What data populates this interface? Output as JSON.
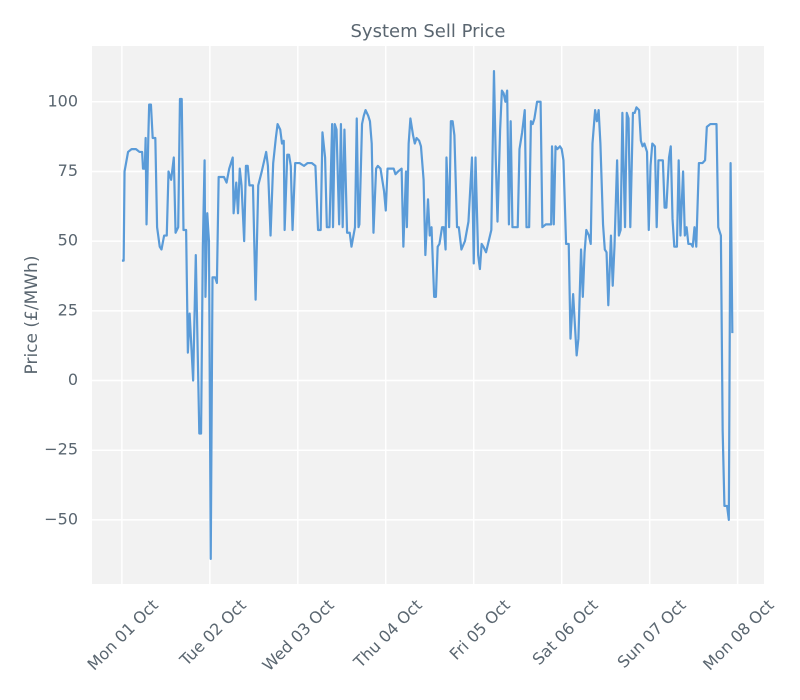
{
  "chart_data": {
    "type": "line",
    "title": "System Sell Price",
    "y_label": "Price (£/MWh)",
    "x": [
      0,
      0.02,
      0.03,
      0.07,
      0.11,
      0.16,
      0.2,
      0.23,
      0.24,
      0.26,
      0.27,
      0.28,
      0.3,
      0.31,
      0.33,
      0.35,
      0.38,
      0.4,
      0.43,
      0.45,
      0.48,
      0.51,
      0.53,
      0.56,
      0.59,
      0.61,
      0.64,
      0.66,
      0.68,
      0.7,
      0.73,
      0.75,
      0.77,
      0.81,
      0.84,
      0.88,
      0.9,
      0.92,
      0.94,
      0.95,
      0.97,
      0.99,
      1.01,
      1.03,
      1.06,
      1.08,
      1.1,
      1.16,
      1.19,
      1.22,
      1.24,
      1.26,
      1.27,
      1.3,
      1.32,
      1.34,
      1.36,
      1.39,
      1.41,
      1.43,
      1.45,
      1.49,
      1.52,
      1.55,
      1.59,
      1.64,
      1.66,
      1.69,
      1.72,
      1.75,
      1.77,
      1.8,
      1.82,
      1.84,
      1.85,
      1.88,
      1.9,
      1.92,
      1.94,
      1.97,
      2.02,
      2.07,
      2.11,
      2.16,
      2.2,
      2.23,
      2.26,
      2.28,
      2.31,
      2.33,
      2.36,
      2.39,
      2.4,
      2.42,
      2.44,
      2.47,
      2.49,
      2.51,
      2.53,
      2.56,
      2.59,
      2.61,
      2.65,
      2.67,
      2.69,
      2.7,
      2.73,
      2.75,
      2.77,
      2.8,
      2.82,
      2.84,
      2.86,
      2.89,
      2.91,
      2.94,
      2.98,
      3.0,
      3.02,
      3.06,
      3.09,
      3.11,
      3.14,
      3.18,
      3.2,
      3.23,
      3.24,
      3.26,
      3.28,
      3.31,
      3.33,
      3.35,
      3.38,
      3.4,
      3.43,
      3.45,
      3.48,
      3.5,
      3.52,
      3.55,
      3.57,
      3.59,
      3.61,
      3.64,
      3.66,
      3.68,
      3.69,
      3.72,
      3.74,
      3.76,
      3.78,
      3.81,
      3.83,
      3.86,
      3.9,
      3.94,
      3.98,
      4.0,
      4.02,
      4.05,
      4.07,
      4.09,
      4.11,
      4.14,
      4.17,
      4.2,
      4.23,
      4.25,
      4.27,
      4.3,
      4.32,
      4.34,
      4.36,
      4.38,
      4.4,
      4.42,
      4.44,
      4.48,
      4.5,
      4.52,
      4.55,
      4.58,
      4.6,
      4.63,
      4.65,
      4.67,
      4.69,
      4.72,
      4.76,
      4.78,
      4.82,
      4.85,
      4.88,
      4.89,
      4.91,
      4.93,
      4.95,
      4.98,
      5.0,
      5.02,
      5.05,
      5.08,
      5.1,
      5.13,
      5.15,
      5.17,
      5.19,
      5.22,
      5.24,
      5.26,
      5.28,
      5.31,
      5.33,
      5.35,
      5.38,
      5.4,
      5.42,
      5.44,
      5.47,
      5.49,
      5.51,
      5.53,
      5.56,
      5.58,
      5.6,
      5.63,
      5.65,
      5.67,
      5.69,
      5.72,
      5.74,
      5.76,
      5.78,
      5.81,
      5.83,
      5.85,
      5.88,
      5.9,
      5.92,
      5.94,
      5.97,
      5.99,
      6.01,
      6.03,
      6.06,
      6.08,
      6.1,
      6.13,
      6.15,
      6.17,
      6.19,
      6.22,
      6.24,
      6.26,
      6.28,
      6.31,
      6.33,
      6.35,
      6.38,
      6.4,
      6.42,
      6.44,
      6.47,
      6.49,
      6.51,
      6.53,
      6.56,
      6.6,
      6.63,
      6.65,
      6.69,
      6.74,
      6.76,
      6.78,
      6.81,
      6.83,
      6.85,
      6.88,
      6.9,
      6.92,
      6.94
    ],
    "series": [
      {
        "name": "System Sell Price",
        "color": "#5a9bd8",
        "values": [
          43,
          43,
          75,
          82,
          83,
          83,
          82,
          82,
          76,
          76,
          87,
          56,
          87,
          99,
          99,
          87,
          87,
          55,
          48,
          47,
          52,
          52,
          75,
          72,
          80,
          53,
          55,
          101,
          101,
          54,
          54,
          10,
          24,
          0,
          45,
          -19,
          -19,
          48,
          79,
          30,
          60,
          50,
          -64,
          37,
          37,
          35,
          73,
          73,
          71,
          76,
          78,
          80,
          60,
          71,
          60,
          76,
          70,
          50,
          77,
          77,
          70,
          70,
          29,
          70,
          75,
          82,
          77,
          52,
          78,
          87,
          92,
          90,
          85,
          86,
          54,
          81,
          81,
          77,
          54,
          78,
          78,
          77,
          78,
          78,
          77,
          54,
          54,
          89,
          80,
          55,
          55,
          92,
          55,
          92,
          90,
          56,
          92,
          55,
          90,
          53,
          53,
          48,
          55,
          94,
          55,
          56,
          92,
          95,
          97,
          95,
          93,
          85,
          53,
          76,
          77,
          76,
          68,
          61,
          76,
          76,
          76,
          74,
          75,
          76,
          48,
          75,
          55,
          85,
          94,
          88,
          85,
          87,
          86,
          84,
          72,
          45,
          65,
          52,
          55,
          30,
          30,
          48,
          49,
          55,
          55,
          47,
          80,
          55,
          93,
          93,
          88,
          55,
          55,
          47,
          50,
          57,
          80,
          42,
          80,
          45,
          40,
          49,
          48,
          46,
          50,
          54,
          111,
          80,
          57,
          90,
          104,
          103,
          100,
          104,
          56,
          93,
          55,
          55,
          55,
          83,
          89,
          97,
          55,
          55,
          93,
          92,
          94,
          100,
          100,
          55,
          56,
          56,
          56,
          84,
          56,
          84,
          83,
          84,
          83,
          79,
          49,
          49,
          15,
          31,
          20,
          9,
          15,
          47,
          30,
          46,
          54,
          52,
          49,
          85,
          97,
          93,
          97,
          85,
          56,
          47,
          46,
          27,
          52,
          34,
          48,
          79,
          52,
          54,
          96,
          55,
          96,
          94,
          55,
          96,
          96,
          98,
          97,
          86,
          84,
          85,
          82,
          54,
          77,
          85,
          84,
          55,
          79,
          79,
          79,
          62,
          62,
          80,
          84,
          58,
          48,
          48,
          79,
          52,
          75,
          52,
          55,
          49,
          49,
          48,
          55,
          48,
          78,
          78,
          79,
          91,
          92,
          92,
          92,
          55,
          52,
          -18,
          -45,
          -45,
          -50,
          78,
          17
        ]
      }
    ],
    "xlim": [
      -0.34,
      7.3
    ],
    "xticks": [
      {
        "value": 0,
        "label": "Mon 01 Oct"
      },
      {
        "value": 1,
        "label": "Tue 02 Oct"
      },
      {
        "value": 2,
        "label": "Wed 03 Oct"
      },
      {
        "value": 3,
        "label": "Thu 04 Oct"
      },
      {
        "value": 4,
        "label": "Fri 05 Oct"
      },
      {
        "value": 5,
        "label": "Sat 06 Oct"
      },
      {
        "value": 6,
        "label": "Sun 07 Oct"
      },
      {
        "value": 7,
        "label": "Mon 08 Oct"
      }
    ],
    "ylim": [
      -73,
      120
    ],
    "yticks": [
      {
        "value": -50,
        "label": "−50"
      },
      {
        "value": -25,
        "label": "−25"
      },
      0,
      25,
      50,
      75,
      100
    ],
    "grid": true
  }
}
